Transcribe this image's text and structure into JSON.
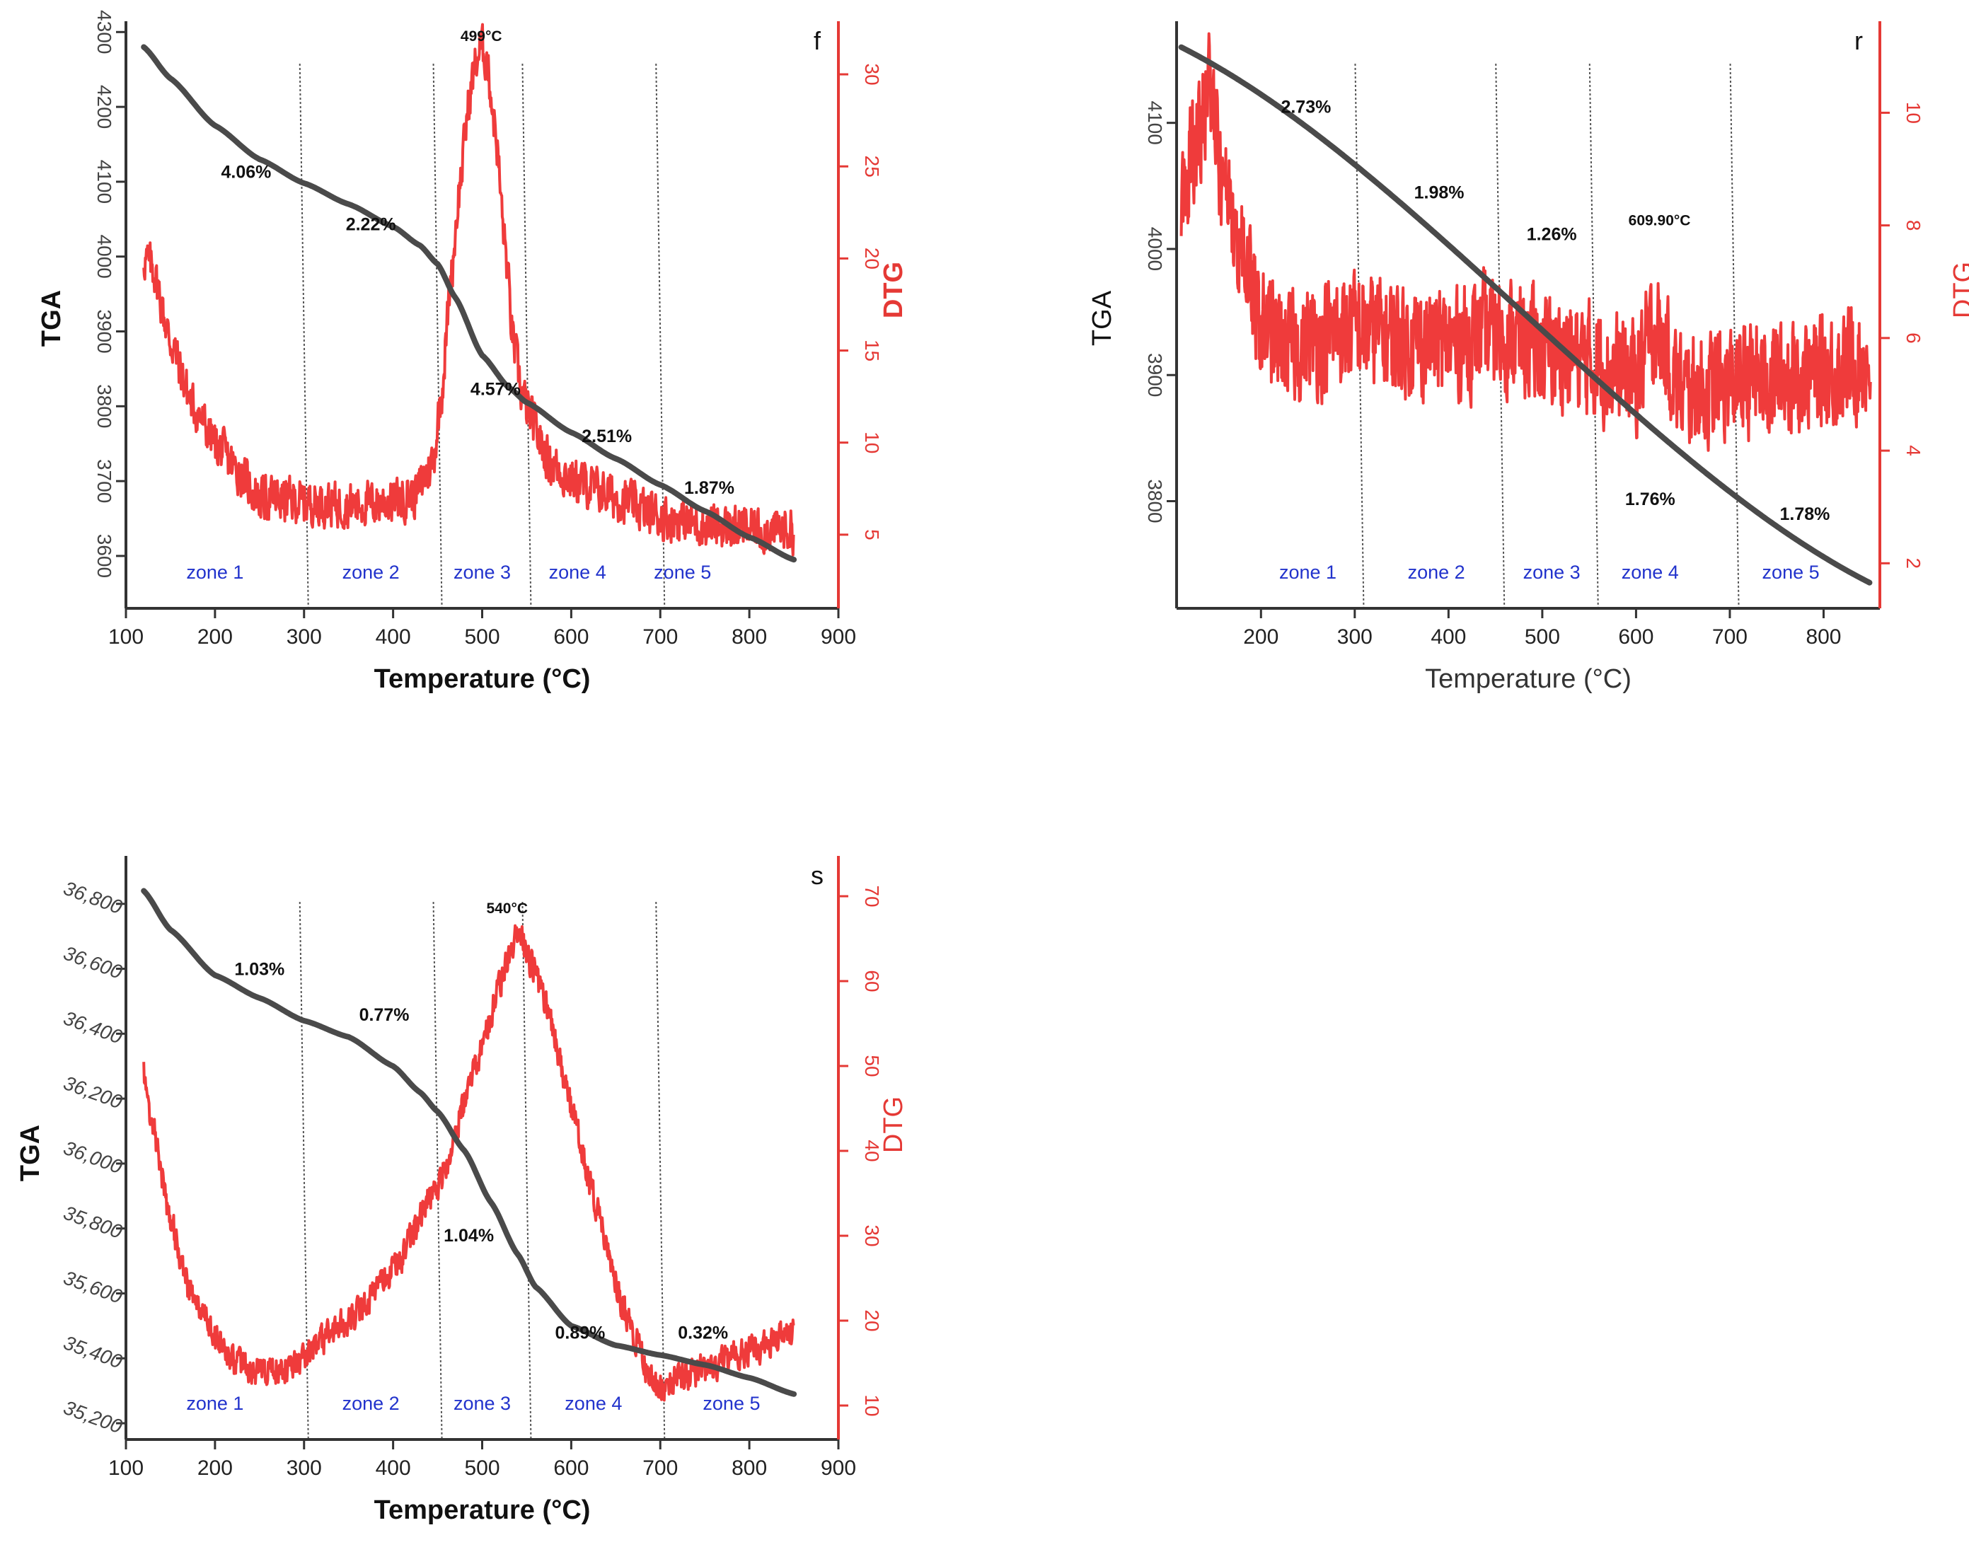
{
  "chart_data": [
    {
      "panel": "f",
      "type": "line",
      "xlabel": "Temperature (°C)",
      "ylabel": "TGA",
      "y2label": "DTG",
      "xlim": [
        100,
        900
      ],
      "ylim": [
        3530,
        4305
      ],
      "y2lim": [
        1,
        32.5
      ],
      "xticks": [
        100,
        200,
        300,
        400,
        500,
        600,
        700,
        800,
        900
      ],
      "yticks": [
        3600,
        3700,
        3800,
        3900,
        4000,
        4100,
        4200,
        4300
      ],
      "y2ticks": [
        5,
        10,
        15,
        20,
        25,
        30
      ],
      "zone_boundaries": [
        300,
        450,
        550,
        700
      ],
      "zones": [
        {
          "label": "zone 1",
          "x": 200
        },
        {
          "label": "zone 2",
          "x": 375
        },
        {
          "label": "zone 3",
          "x": 500
        },
        {
          "label": "zone 4",
          "x": 607
        },
        {
          "label": "zone 5",
          "x": 725
        }
      ],
      "annotations": [
        {
          "text": "4.06%",
          "x": 235,
          "y": 4105
        },
        {
          "text": "2.22%",
          "x": 375,
          "y": 4035
        },
        {
          "text": "4.57%",
          "x": 515,
          "y": 3815
        },
        {
          "text": "2.51%",
          "x": 640,
          "y": 3752
        },
        {
          "text": "1.87%",
          "x": 755,
          "y": 3683
        }
      ],
      "peak_label": {
        "text": "499°C",
        "x": 499,
        "y2": 31.8
      },
      "series": [
        {
          "name": "TGA",
          "axis": "left",
          "x": [
            120,
            150,
            200,
            250,
            300,
            350,
            400,
            430,
            450,
            470,
            500,
            530,
            550,
            600,
            650,
            700,
            750,
            800,
            850
          ],
          "y": [
            4280,
            4238,
            4175,
            4130,
            4098,
            4070,
            4040,
            4015,
            3990,
            3945,
            3868,
            3825,
            3805,
            3765,
            3730,
            3695,
            3660,
            3625,
            3595
          ]
        },
        {
          "name": "DTG",
          "axis": "right",
          "x": [
            120,
            130,
            150,
            175,
            200,
            225,
            250,
            300,
            350,
            400,
            425,
            445,
            455,
            465,
            475,
            485,
            492,
            499,
            505,
            515,
            525,
            535,
            545,
            555,
            575,
            600,
            650,
            700,
            750,
            800,
            850
          ],
          "y": [
            20,
            19.5,
            15.5,
            12,
            10,
            8.5,
            7,
            6.8,
            6.6,
            6.8,
            7.2,
            9,
            13,
            19,
            24,
            28.5,
            30.5,
            31.5,
            30.8,
            27,
            21,
            15.5,
            12.5,
            11.3,
            9,
            8,
            7,
            6,
            5.5,
            5.3,
            5.2
          ]
        }
      ]
    },
    {
      "panel": "r",
      "type": "line",
      "xlabel": "Temperature (°C)",
      "ylabel": "TGA",
      "y2label": "DTG",
      "xlim": [
        110,
        860
      ],
      "ylim": [
        3715,
        4175
      ],
      "y2lim": [
        1.2,
        11.5
      ],
      "xticks": [
        200,
        300,
        400,
        500,
        600,
        700,
        800
      ],
      "yticks": [
        3800,
        3900,
        4000,
        4100
      ],
      "y2ticks": [
        2,
        4,
        6,
        8,
        10
      ],
      "zone_boundaries": [
        305,
        455,
        555,
        705
      ],
      "zones": [
        {
          "label": "zone 1",
          "x": 250
        },
        {
          "label": "zone 2",
          "x": 387
        },
        {
          "label": "zone 3",
          "x": 510
        },
        {
          "label": "zone 4",
          "x": 615
        },
        {
          "label": "zone 5",
          "x": 765
        }
      ],
      "annotations": [
        {
          "text": "2.73%",
          "x": 248,
          "y": 4108
        },
        {
          "text": "1.98%",
          "x": 390,
          "y": 4040
        },
        {
          "text": "1.26%",
          "x": 510,
          "y": 4007
        },
        {
          "text": "1.76%",
          "x": 615,
          "y": 3797
        },
        {
          "text": "1.78%",
          "x": 780,
          "y": 3785
        }
      ],
      "peak_label": {
        "text": "609.90°C",
        "x": 625,
        "y2": 8
      },
      "series": [
        {
          "name": "TGA",
          "axis": "left",
          "x": [
            115,
            850
          ],
          "y": [
            4160,
            3735
          ]
        },
        {
          "name": "DTG",
          "axis": "right",
          "x": [
            115,
            130,
            145,
            160,
            180,
            200,
            230,
            260,
            300,
            350,
            400,
            450,
            500,
            550,
            600,
            620,
            650,
            700,
            750,
            800,
            850
          ],
          "y": [
            8.5,
            9.5,
            10.5,
            8.5,
            7.5,
            6.2,
            5.8,
            6.0,
            6.2,
            6.0,
            5.9,
            6.1,
            5.8,
            5.6,
            5.3,
            6.2,
            5.0,
            5.2,
            5.3,
            5.4,
            5.6
          ]
        }
      ]
    },
    {
      "panel": "s",
      "type": "line",
      "xlabel": "Temperature (°C)",
      "ylabel": "TGA",
      "y2label": "DTG",
      "xlim": [
        100,
        900
      ],
      "ylim": [
        35150,
        36915
      ],
      "y2lim": [
        6,
        73.5
      ],
      "xticks": [
        100,
        200,
        300,
        400,
        500,
        600,
        700,
        800,
        900
      ],
      "yticks": [
        "35,200",
        "35,400",
        "35,600",
        "35,800",
        "36,000",
        "36,200",
        "36,400",
        "36,600",
        "36,800"
      ],
      "y2ticks": [
        10,
        20,
        30,
        40,
        50,
        60,
        70
      ],
      "zone_boundaries": [
        300,
        450,
        550,
        700
      ],
      "zones": [
        {
          "label": "zone 1",
          "x": 200
        },
        {
          "label": "zone 2",
          "x": 375
        },
        {
          "label": "zone 3",
          "x": 500
        },
        {
          "label": "zone 4",
          "x": 625
        },
        {
          "label": "zone 5",
          "x": 780
        }
      ],
      "annotations": [
        {
          "text": "1.03%",
          "x": 250,
          "y": 36580
        },
        {
          "text": "0.77%",
          "x": 390,
          "y": 36440
        },
        {
          "text": "1.04%",
          "x": 485,
          "y": 35760
        },
        {
          "text": "0.89%",
          "x": 610,
          "y": 35460
        },
        {
          "text": "0.32%",
          "x": 748,
          "y": 35460
        }
      ],
      "peak_label": {
        "text": "540°C",
        "x": 528,
        "y2": 68
      },
      "series": [
        {
          "name": "TGA",
          "axis": "left",
          "x": [
            120,
            150,
            200,
            250,
            300,
            350,
            400,
            430,
            450,
            480,
            510,
            540,
            560,
            600,
            650,
            700,
            750,
            800,
            850
          ],
          "y": [
            36840,
            36720,
            36580,
            36510,
            36440,
            36390,
            36300,
            36220,
            36160,
            36040,
            35880,
            35720,
            35620,
            35500,
            35440,
            35410,
            35380,
            35340,
            35290
          ]
        },
        {
          "name": "DTG",
          "axis": "right",
          "x": [
            120,
            130,
            150,
            170,
            200,
            225,
            250,
            280,
            300,
            350,
            400,
            450,
            500,
            520,
            540,
            555,
            575,
            600,
            630,
            660,
            690,
            700,
            720,
            750,
            800,
            850
          ],
          "y": [
            49,
            43,
            32,
            24,
            18,
            15,
            14,
            14.5,
            16,
            20,
            26,
            36,
            52,
            60,
            66,
            62,
            56,
            45,
            33,
            21,
            13,
            12,
            13,
            14.5,
            16.5,
            18.5
          ]
        }
      ]
    }
  ]
}
